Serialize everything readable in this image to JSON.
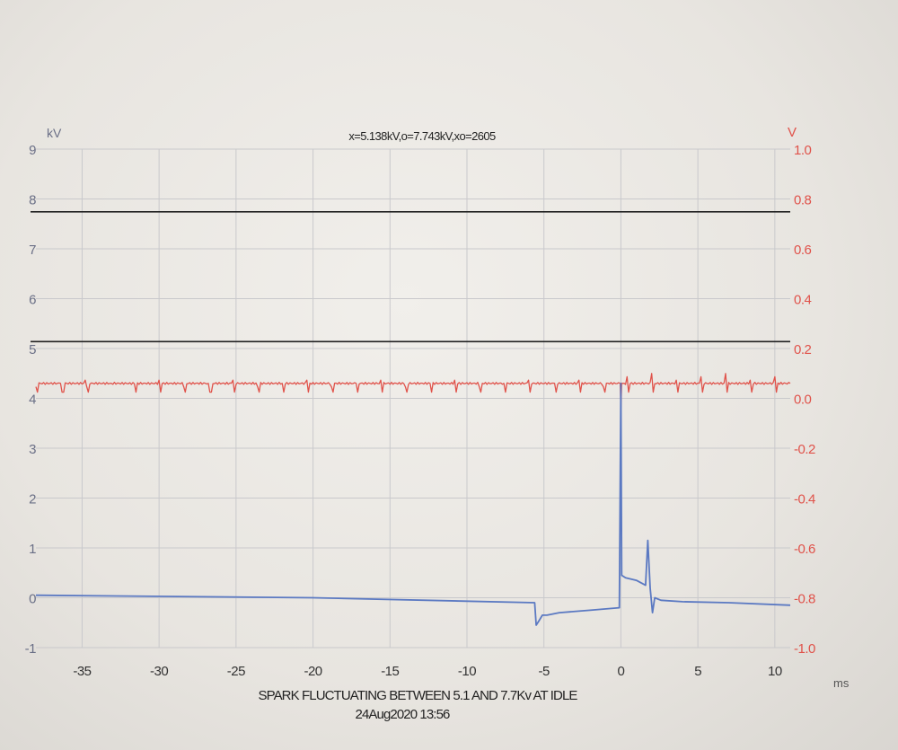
{
  "chart_data": {
    "type": "line",
    "header": "x=5.138kV,o=7.743kV,xo=2605",
    "caption_line1": "SPARK FLUCTUATING BETWEEN 5.1 AND 7.7Kv AT IDLE",
    "caption_line2": "24Aug2020  13:56",
    "xlabel": "ms",
    "ylabel_left": "kV",
    "ylabel_right": "V",
    "xlim": [
      -38,
      11
    ],
    "ylim_left": [
      -1,
      9
    ],
    "ylim_right": [
      -1.0,
      1.0
    ],
    "x_ticks": [
      "-35",
      "-30",
      "-25",
      "-20",
      "-15",
      "-10",
      "-5",
      "0",
      "5",
      "10"
    ],
    "y_left_ticks": [
      "-1",
      "0",
      "1",
      "2",
      "3",
      "4",
      "5",
      "6",
      "7",
      "8",
      "9"
    ],
    "y_right_ticks": [
      "-1.0",
      "-0.8",
      "-0.6",
      "-0.4",
      "-0.2",
      "0.0",
      "0.2",
      "0.4",
      "0.6",
      "0.8",
      "1.0"
    ],
    "grid": true,
    "colors": {
      "primary_voltage": "#e0524a",
      "secondary_kv": "#5b79c2",
      "cursor_lines": "#222222",
      "grid": "#c9c9cc"
    },
    "cursor_lines_kv": [
      7.743,
      5.138
    ],
    "series": [
      {
        "axis": "right",
        "color": "#e0524a",
        "x": [
          -38,
          -5,
          -0.05,
          0.0,
          0.05,
          0.3,
          2,
          11
        ],
        "y": [
          0.06,
          0.06,
          0.06,
          -0.04,
          0.06,
          0.06,
          0.06,
          0.06
        ]
      },
      {
        "axis": "left",
        "color": "#5b79c2",
        "x": [
          -38,
          -20,
          -5.6,
          -5.5,
          -5.3,
          -5.1,
          -4.8,
          -4.0,
          -2.0,
          -0.1,
          0.0,
          0.05,
          0.3,
          1.0,
          1.6,
          1.75,
          1.9,
          2.05,
          2.2,
          2.6,
          4.0,
          7.0,
          11.0
        ],
        "y": [
          0.05,
          0.0,
          -0.1,
          -0.55,
          -0.45,
          -0.35,
          -0.35,
          -0.3,
          -0.25,
          -0.2,
          4.3,
          0.45,
          0.4,
          0.35,
          0.25,
          1.15,
          0.2,
          -0.3,
          0.0,
          -0.05,
          -0.08,
          -0.1,
          -0.15
        ]
      }
    ]
  }
}
